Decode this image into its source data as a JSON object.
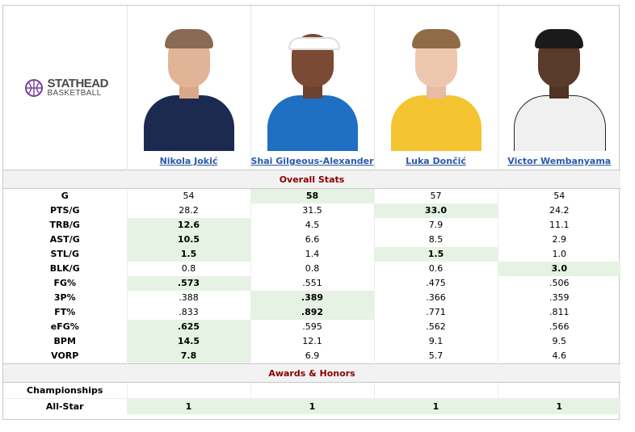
{
  "logo": {
    "top": "STATHEAD",
    "bottom": "BASKETBALL"
  },
  "players": [
    {
      "name": "Nikola Jokić"
    },
    {
      "name": "Shai Gilgeous-Alexander"
    },
    {
      "name": "Luka Dončić"
    },
    {
      "name": "Victor Wembanyama"
    }
  ],
  "sections": {
    "overall": "Overall Stats",
    "awards": "Awards & Honors"
  },
  "stats": [
    {
      "label": "G",
      "values": [
        "54",
        "58",
        "57",
        "54"
      ],
      "best": [
        1
      ]
    },
    {
      "label": "PTS/G",
      "values": [
        "28.2",
        "31.5",
        "33.0",
        "24.2"
      ],
      "best": [
        2
      ]
    },
    {
      "label": "TRB/G",
      "values": [
        "12.6",
        "4.5",
        "7.9",
        "11.1"
      ],
      "best": [
        0
      ]
    },
    {
      "label": "AST/G",
      "values": [
        "10.5",
        "6.6",
        "8.5",
        "2.9"
      ],
      "best": [
        0
      ]
    },
    {
      "label": "STL/G",
      "values": [
        "1.5",
        "1.4",
        "1.5",
        "1.0"
      ],
      "best": [
        0,
        2
      ]
    },
    {
      "label": "BLK/G",
      "values": [
        "0.8",
        "0.8",
        "0.6",
        "3.0"
      ],
      "best": [
        3
      ]
    },
    {
      "label": "FG%",
      "values": [
        ".573",
        ".551",
        ".475",
        ".506"
      ],
      "best": [
        0
      ]
    },
    {
      "label": "3P%",
      "values": [
        ".388",
        ".389",
        ".366",
        ".359"
      ],
      "best": [
        1
      ]
    },
    {
      "label": "FT%",
      "values": [
        ".833",
        ".892",
        ".771",
        ".811"
      ],
      "best": [
        1
      ]
    },
    {
      "label": "eFG%",
      "values": [
        ".625",
        ".595",
        ".562",
        ".566"
      ],
      "best": [
        0
      ]
    },
    {
      "label": "BPM",
      "values": [
        "14.5",
        "12.1",
        "9.1",
        "9.5"
      ],
      "best": [
        0
      ]
    },
    {
      "label": "VORP",
      "values": [
        "7.8",
        "6.9",
        "5.7",
        "4.6"
      ],
      "best": [
        0
      ]
    }
  ],
  "awards": [
    {
      "label": "Championships",
      "values": [
        "",
        "",
        "",
        ""
      ]
    },
    {
      "label": "All-Star",
      "values": [
        "1",
        "1",
        "1",
        "1"
      ]
    }
  ],
  "colors": {
    "link": "#2a5aa8",
    "section_title": "#8b0000",
    "highlight": "#e6f2e4",
    "logo_purple": "#7a3f99",
    "jersey_nuggets": "#1d2a50",
    "jersey_thunder": "#1f6fc2",
    "jersey_lakers": "#f5c431",
    "jersey_spurs": "#f0f0f0"
  }
}
